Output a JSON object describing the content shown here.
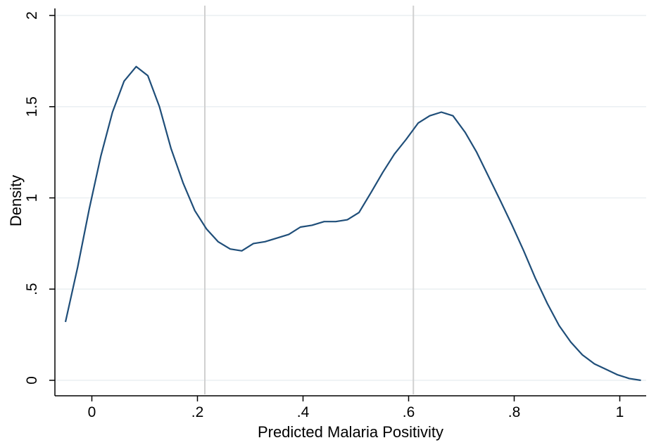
{
  "chart_data": {
    "type": "line",
    "xlabel": "Predicted Malaria Positivity",
    "ylabel": "Density",
    "xlim": [
      -0.07,
      1.05
    ],
    "ylim": [
      0,
      2
    ],
    "x_ticks": [
      0,
      0.2,
      0.4,
      0.6,
      0.8,
      1
    ],
    "x_tick_labels": [
      "0",
      ".2",
      ".4",
      ".6",
      ".8",
      "1"
    ],
    "y_ticks": [
      0,
      0.5,
      1,
      1.5,
      2
    ],
    "y_tick_labels": [
      "0",
      ".5",
      "1",
      "1.5",
      "2"
    ],
    "grid": "horizontal",
    "reference_lines_x": [
      0.214,
      0.609
    ],
    "colors": {
      "line": "#1f4e79",
      "grid": "#eaeff2",
      "reference": "#d0d0d0",
      "axis": "#000000"
    },
    "series": [
      {
        "x": [
          -0.05,
          -0.027,
          -0.005,
          0.017,
          0.039,
          0.061,
          0.084,
          0.106,
          0.128,
          0.15,
          0.173,
          0.195,
          0.217,
          0.239,
          0.262,
          0.284,
          0.306,
          0.328,
          0.351,
          0.373,
          0.395,
          0.417,
          0.44,
          0.462,
          0.484,
          0.506,
          0.529,
          0.551,
          0.573,
          0.595,
          0.618,
          0.64,
          0.662,
          0.684,
          0.707,
          0.729,
          0.751,
          0.773,
          0.796,
          0.818,
          0.84,
          0.863,
          0.885,
          0.907,
          0.929,
          0.952,
          0.974,
          0.996,
          1.018,
          1.04
        ],
        "y": [
          0.32,
          0.62,
          0.94,
          1.23,
          1.47,
          1.64,
          1.72,
          1.67,
          1.5,
          1.27,
          1.08,
          0.93,
          0.83,
          0.76,
          0.72,
          0.71,
          0.75,
          0.76,
          0.78,
          0.8,
          0.84,
          0.85,
          0.87,
          0.87,
          0.88,
          0.92,
          1.03,
          1.14,
          1.24,
          1.32,
          1.41,
          1.45,
          1.47,
          1.45,
          1.36,
          1.25,
          1.12,
          0.99,
          0.85,
          0.71,
          0.56,
          0.42,
          0.3,
          0.21,
          0.14,
          0.09,
          0.06,
          0.03,
          0.01,
          0.0
        ]
      }
    ]
  }
}
